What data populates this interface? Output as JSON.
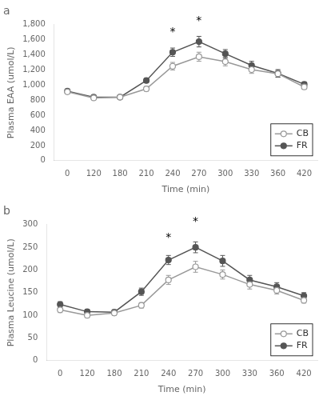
{
  "chart_data": [
    {
      "type": "line",
      "title": "a",
      "x_label": "Time (min)",
      "y_label": "Plasma EAA (umol/L)",
      "categories": [
        "0",
        "120",
        "180",
        "210",
        "240",
        "270",
        "300",
        "330",
        "360",
        "420"
      ],
      "series": [
        {
          "name": "CB",
          "color": "#999999",
          "marker": "open_circle",
          "values": [
            910,
            830,
            840,
            950,
            1250,
            1375,
            1310,
            1205,
            1150,
            975
          ],
          "errors": [
            25,
            20,
            20,
            30,
            50,
            60,
            55,
            50,
            45,
            30
          ]
        },
        {
          "name": "FR",
          "color": "#555555",
          "marker": "circle",
          "values": [
            920,
            840,
            840,
            1060,
            1435,
            1575,
            1415,
            1260,
            1155,
            1010
          ],
          "errors": [
            25,
            20,
            20,
            30,
            55,
            70,
            55,
            55,
            50,
            30
          ]
        }
      ],
      "annotations": [
        {
          "text": "*",
          "x": "240",
          "y": 1650
        },
        {
          "text": "*",
          "x": "270",
          "y": 1790
        }
      ],
      "ylim": [
        0,
        1800
      ],
      "yticks": [
        0,
        200,
        400,
        600,
        800,
        {
          "value": 1000,
          "label": "1,000"
        },
        {
          "value": 1200,
          "label": "1,200"
        },
        {
          "value": 1400,
          "label": "1,400"
        },
        {
          "value": 1600,
          "label": "1,600"
        },
        {
          "value": 1800,
          "label": "1,800"
        }
      ],
      "grid": false,
      "legend": "lower right"
    },
    {
      "type": "line",
      "title": "b",
      "x_label": "Time (min)",
      "y_label": "Plasma Leucine (umol/L)",
      "categories": [
        "0",
        "120",
        "180",
        "210",
        "240",
        "270",
        "300",
        "330",
        "360",
        "420"
      ],
      "series": [
        {
          "name": "CB",
          "color": "#999999",
          "marker": "open_circle",
          "values": [
            112,
            100,
            105,
            122,
            178,
            207,
            190,
            168,
            155,
            133
          ],
          "errors": [
            6,
            5,
            5,
            6,
            10,
            12,
            10,
            10,
            8,
            6
          ]
        },
        {
          "name": "FR",
          "color": "#555555",
          "marker": "circle",
          "values": [
            124,
            108,
            107,
            152,
            222,
            250,
            220,
            178,
            163,
            143
          ],
          "errors": [
            6,
            5,
            5,
            8,
            10,
            12,
            12,
            10,
            9,
            7
          ]
        }
      ],
      "annotations": [
        {
          "text": "*",
          "x": "240",
          "y": 262
        },
        {
          "text": "*",
          "x": "270",
          "y": 298
        }
      ],
      "ylim": [
        0,
        300
      ],
      "yticks": [
        0,
        50,
        100,
        150,
        200,
        250,
        300
      ],
      "grid": false,
      "legend": "lower right"
    }
  ]
}
